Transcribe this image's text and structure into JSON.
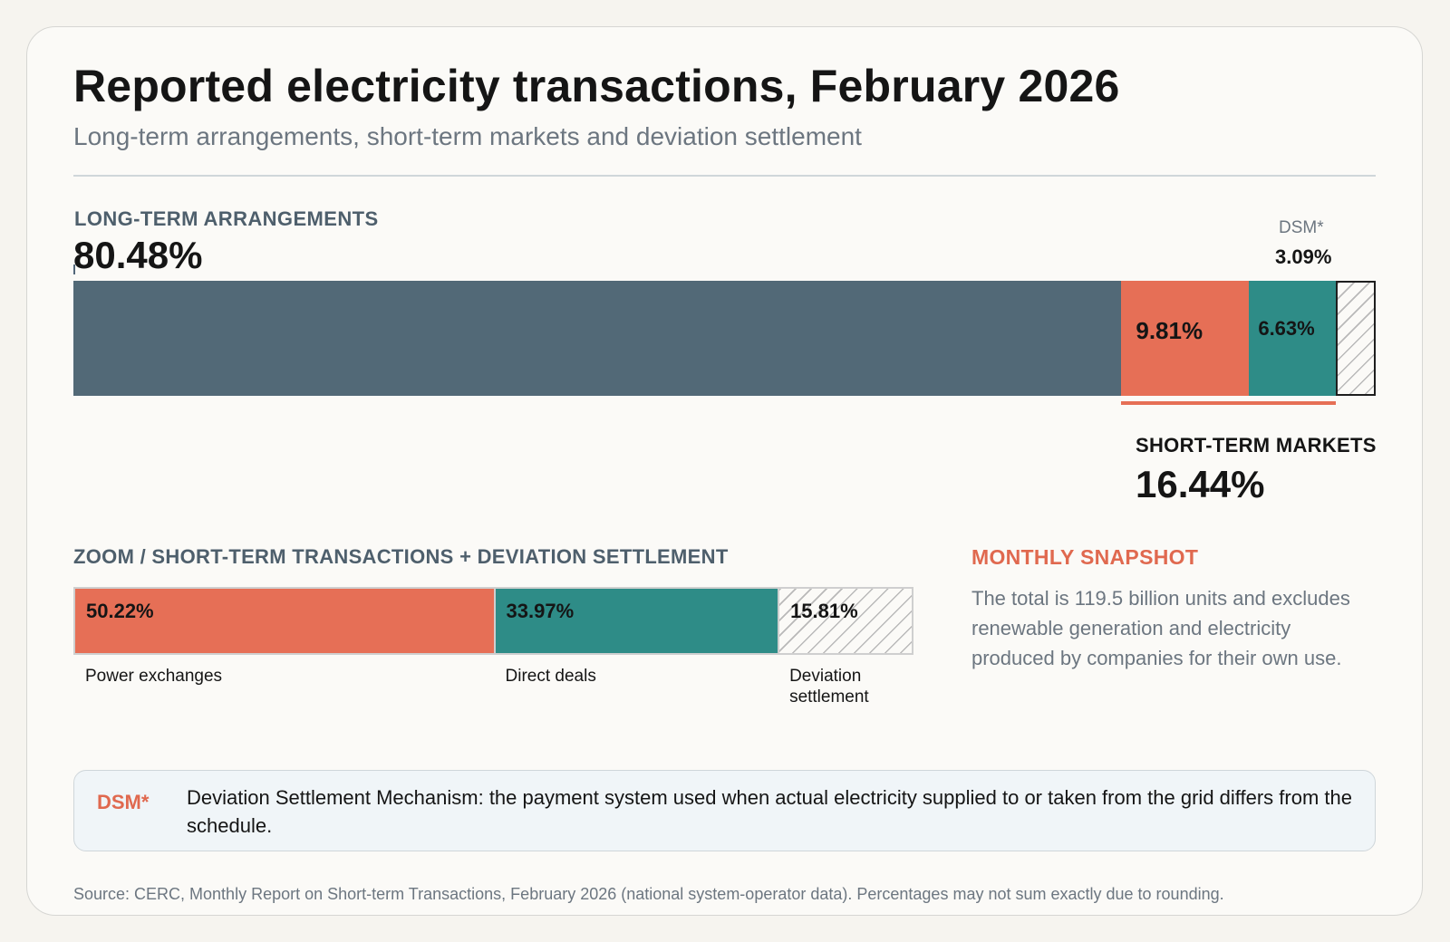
{
  "title": "Reported electricity transactions, February 2026",
  "subtitle": "Long-term arrangements, short-term markets and deviation settlement",
  "colors": {
    "long_term": "#526977",
    "power_exchanges": "#e66f56",
    "direct_deals": "#2e8c87",
    "accent": "#e0694f",
    "dsm_hatch": "#b9b9b9"
  },
  "chart_data": [
    {
      "type": "bar",
      "orientation": "horizontal-stacked",
      "series": [
        {
          "name": "LONG-TERM ARRANGEMENTS",
          "value": 80.48,
          "label": "80.48%"
        },
        {
          "value": 9.81,
          "label": "9.81%"
        },
        {
          "value": 6.63,
          "label": "6.63%"
        },
        {
          "name": "DSM*",
          "value": 3.09,
          "label": "3.09%"
        }
      ],
      "group_label": {
        "name": "SHORT-TERM MARKETS",
        "value": 16.44,
        "label": "16.44%"
      },
      "xlim": [
        0,
        100
      ]
    },
    {
      "type": "bar",
      "orientation": "horizontal-stacked",
      "title": "ZOOM / SHORT-TERM TRANSACTIONS + DEVIATION SETTLEMENT",
      "series": [
        {
          "name": "Power exchanges",
          "value": 50.22,
          "label": "50.22%"
        },
        {
          "name": "Direct deals",
          "value": 33.97,
          "label": "33.97%"
        },
        {
          "name": "Deviation settlement",
          "value": 15.81,
          "label": "15.81%"
        }
      ],
      "xlim": [
        0,
        100
      ]
    }
  ],
  "snapshot": {
    "title": "MONTHLY SNAPSHOT",
    "text": "The total is 119.5 billion units and excludes renewable generation and electricity produced by companies for their own use."
  },
  "note": {
    "key": "DSM*",
    "text": "Deviation Settlement Mechanism: the payment system used when actual electricity supplied to or taken from the grid differs from the schedule."
  },
  "source": "Source: CERC, Monthly Report on Short-term Transactions, February 2026 (national system-operator data). Percentages may not sum exactly due to rounding."
}
